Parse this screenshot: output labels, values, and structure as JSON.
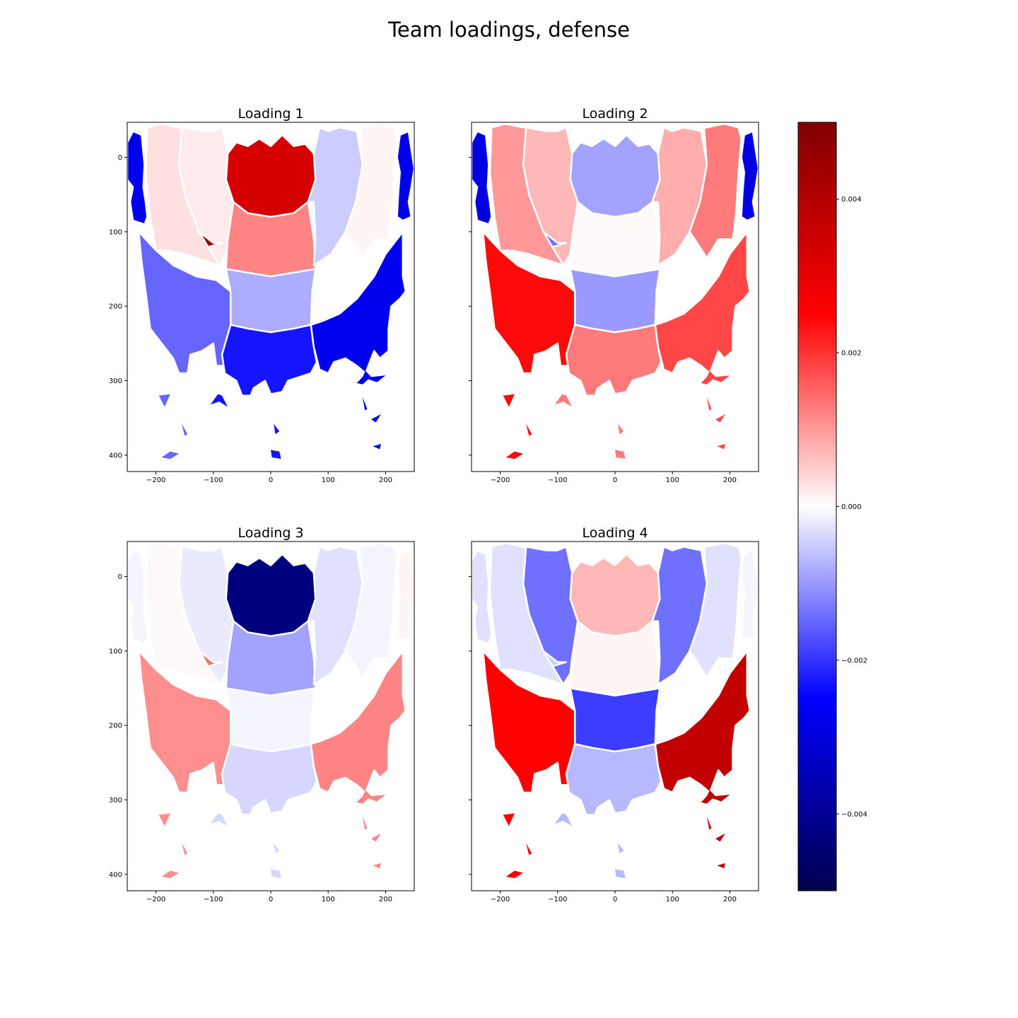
{
  "chart_data": {
    "type": "heatmap",
    "title": "Team loadings, defense",
    "x_range": [
      -250,
      250
    ],
    "y_range": [
      -47,
      422
    ],
    "y_inverted": true,
    "x_ticks": [
      -200,
      -100,
      0,
      100,
      200
    ],
    "x_tick_labels": [
      "−200",
      "−100",
      "0",
      "100",
      "200"
    ],
    "y_ticks": [
      0,
      100,
      200,
      300,
      400
    ],
    "y_tick_labels": [
      "0",
      "100",
      "200",
      "300",
      "400"
    ],
    "zone_order": [
      "restricted_area",
      "paint",
      "mid_left_wing",
      "mid_center",
      "mid_right_wing",
      "mid_left_base",
      "mid_right_base",
      "three_left_wing",
      "three_center",
      "three_right_wing",
      "three_left_upper",
      "three_right_upper",
      "corner_left",
      "corner_right"
    ],
    "panels": [
      {
        "title": "Loading 1",
        "show_y_tick_labels": true,
        "values": [
          0.0033,
          0.0012,
          0.0002,
          -0.0008,
          -0.0005,
          0.0045,
          0.0038,
          -0.0015,
          -0.0023,
          -0.0027,
          0.0003,
          0.0001,
          -0.0027,
          -0.0028
        ]
      },
      {
        "title": "Loading 2",
        "show_y_tick_labels": false,
        "values": [
          -0.0009,
          5e-05,
          0.0007,
          -0.001,
          0.0008,
          -0.0014,
          -0.0007,
          0.0024,
          0.0013,
          0.0018,
          0.001,
          0.0013,
          -0.0029,
          -0.0029
        ]
      },
      {
        "title": "Loading 3",
        "show_y_tick_labels": true,
        "values": [
          -0.0043,
          -0.0009,
          -0.0002,
          -0.0001,
          -0.0003,
          0.0014,
          0.0015,
          0.0011,
          -0.0004,
          0.0012,
          5e-05,
          -0.0001,
          -0.0001,
          0.0001
        ]
      },
      {
        "title": "Loading 4",
        "show_y_tick_labels": false,
        "values": [
          0.0007,
          0.0001,
          -0.0014,
          -0.0019,
          -0.0014,
          -0.0005,
          -0.0003,
          0.0025,
          -0.0007,
          0.0037,
          -0.0003,
          -0.0003,
          -0.0003,
          -0.0001
        ]
      }
    ],
    "colorbar": {
      "colormap": "seismic",
      "range": [
        -0.005,
        0.005
      ],
      "ticks": [
        -0.004,
        -0.002,
        0.0,
        0.002,
        0.004
      ],
      "tick_labels": [
        "−0.004",
        "−0.002",
        "0.000",
        "0.002",
        "0.004"
      ]
    }
  }
}
